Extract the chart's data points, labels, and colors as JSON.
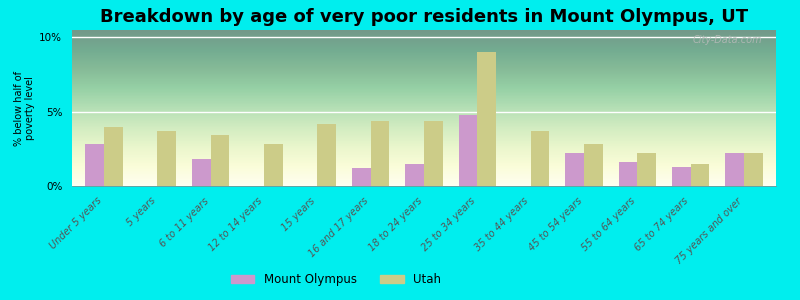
{
  "title": "Breakdown by age of very poor residents in Mount Olympus, UT",
  "ylabel": "% below half of\npoverty level",
  "categories": [
    "Under 5 years",
    "5 years",
    "6 to 11 years",
    "12 to 14 years",
    "15 years",
    "16 and 17 years",
    "18 to 24 years",
    "25 to 34 years",
    "35 to 44 years",
    "45 to 54 years",
    "55 to 64 years",
    "65 to 74 years",
    "75 years and over"
  ],
  "mount_olympus": [
    2.8,
    0,
    1.8,
    0,
    0,
    1.2,
    1.5,
    4.8,
    0,
    2.2,
    1.6,
    1.3,
    2.2
  ],
  "utah": [
    4.0,
    3.7,
    3.4,
    2.8,
    4.2,
    4.4,
    4.4,
    9.0,
    3.7,
    2.8,
    2.2,
    1.5,
    2.2
  ],
  "mount_olympus_color": "#cc99cc",
  "utah_color": "#cccc88",
  "background_color": "#00eeee",
  "ylim": [
    0,
    10.5
  ],
  "yticks": [
    0,
    5,
    10
  ],
  "ytick_labels": [
    "0%",
    "5%",
    "10%"
  ],
  "bar_width": 0.35,
  "title_fontsize": 13,
  "label_fontsize": 7.5,
  "plot_bg_color_top": "#d8e8c0",
  "plot_bg_color_bottom": "#f0f5e0"
}
